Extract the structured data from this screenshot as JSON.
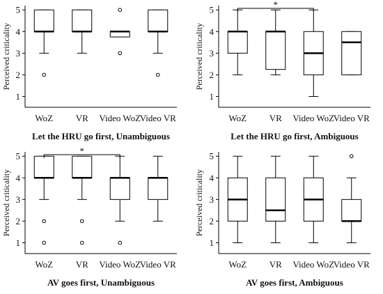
{
  "chart_data": [
    {
      "type": "box",
      "title": "Let the HRU go first, Unambiguous",
      "ylabel": "Perceived criticality",
      "ylim": [
        0.5,
        5.2
      ],
      "yticks": [
        1,
        2,
        3,
        4,
        5
      ],
      "categories": [
        "WoZ",
        "VR",
        "Video WoZ",
        "Video VR"
      ],
      "boxes": [
        {
          "min": 3,
          "q1": 4,
          "median": 4,
          "q3": 5,
          "max": 5,
          "outliers": [
            2
          ]
        },
        {
          "min": 3,
          "q1": 4,
          "median": 4,
          "q3": 5,
          "max": 5,
          "outliers": []
        },
        {
          "min": 3.75,
          "q1": 3.75,
          "median": 4,
          "q3": 4,
          "max": 4,
          "outliers": [
            5,
            3
          ]
        },
        {
          "min": 3,
          "q1": 4,
          "median": 4,
          "q3": 5,
          "max": 5,
          "outliers": [
            2
          ]
        }
      ],
      "significance": []
    },
    {
      "type": "box",
      "title": "Let the HRU go first, Ambiguous",
      "ylabel": "Perceived criticality",
      "ylim": [
        0.5,
        5.2
      ],
      "yticks": [
        1,
        2,
        3,
        4,
        5
      ],
      "categories": [
        "WoZ",
        "VR",
        "Video WoZ",
        "Video VR"
      ],
      "boxes": [
        {
          "min": 2,
          "q1": 3,
          "median": 4,
          "q3": 4,
          "max": 5,
          "outliers": []
        },
        {
          "min": 2,
          "q1": 2.25,
          "median": 4,
          "q3": 4,
          "max": 5,
          "outliers": []
        },
        {
          "min": 1,
          "q1": 2,
          "median": 3,
          "q3": 4,
          "max": 5,
          "outliers": []
        },
        {
          "min": 2,
          "q1": 2,
          "median": 3.5,
          "q3": 4,
          "max": 4,
          "outliers": []
        }
      ],
      "significance": [
        {
          "from": 0,
          "to": 2,
          "label": "*"
        }
      ]
    },
    {
      "type": "box",
      "title": "AV goes first, Unambiguous",
      "ylabel": "Perceived criticality",
      "ylim": [
        0.5,
        5.2
      ],
      "yticks": [
        1,
        2,
        3,
        4,
        5
      ],
      "categories": [
        "WoZ",
        "VR",
        "Video WoZ",
        "Video VR"
      ],
      "boxes": [
        {
          "min": 3,
          "q1": 4,
          "median": 4,
          "q3": 5,
          "max": 5,
          "outliers": [
            2,
            1
          ]
        },
        {
          "min": 3,
          "q1": 4,
          "median": 4,
          "q3": 5,
          "max": 5,
          "outliers": [
            2,
            1
          ]
        },
        {
          "min": 2,
          "q1": 3,
          "median": 4,
          "q3": 4,
          "max": 5,
          "outliers": [
            1
          ]
        },
        {
          "min": 2,
          "q1": 3,
          "median": 4,
          "q3": 4,
          "max": 5,
          "outliers": []
        }
      ],
      "significance": [
        {
          "from": 0,
          "to": 2,
          "label": "*"
        }
      ]
    },
    {
      "type": "box",
      "title": "AV goes first, Ambiguous",
      "ylabel": "Perceived criticality",
      "ylim": [
        0.5,
        5.2
      ],
      "yticks": [
        1,
        2,
        3,
        4,
        5
      ],
      "categories": [
        "WoZ",
        "VR",
        "Video WoZ",
        "Video VR"
      ],
      "boxes": [
        {
          "min": 1,
          "q1": 2,
          "median": 3,
          "q3": 4,
          "max": 5,
          "outliers": []
        },
        {
          "min": 1,
          "q1": 2,
          "median": 2.5,
          "q3": 4,
          "max": 5,
          "outliers": []
        },
        {
          "min": 1,
          "q1": 2,
          "median": 3,
          "q3": 4,
          "max": 5,
          "outliers": []
        },
        {
          "min": 1,
          "q1": 2,
          "median": 2,
          "q3": 3,
          "max": 4,
          "outliers": [
            5
          ]
        }
      ],
      "significance": []
    }
  ]
}
